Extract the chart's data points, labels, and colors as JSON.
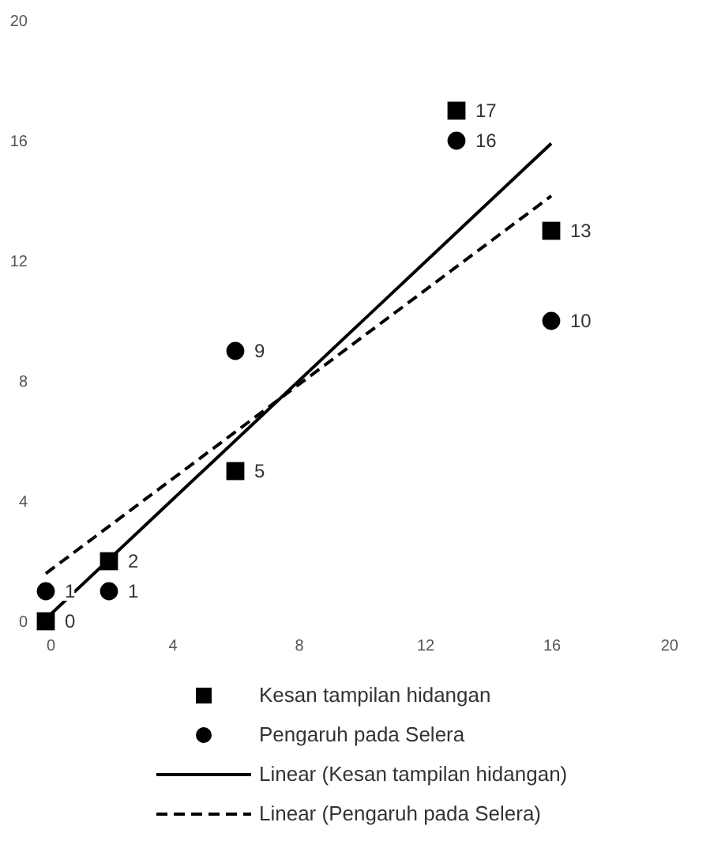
{
  "chart_data": {
    "type": "scatter",
    "xlim": [
      0,
      20
    ],
    "ylim": [
      0,
      20
    ],
    "xticks": [
      0,
      4,
      8,
      12,
      16,
      20
    ],
    "yticks": [
      0,
      4,
      8,
      12,
      16,
      20
    ],
    "grid": false,
    "legend": "bottom",
    "series": [
      {
        "name": "Kesan tampilan hidangan",
        "color": "#000000",
        "marker": "square",
        "x": [
          0,
          2,
          6,
          13,
          16
        ],
        "values": [
          0,
          2,
          5,
          17,
          13
        ],
        "value_labels": [
          "0",
          "2",
          "5",
          "17",
          "13"
        ]
      },
      {
        "name": "Pengaruh pada Selera",
        "color": "#000000",
        "marker": "circle",
        "x": [
          0,
          2,
          6,
          13,
          16
        ],
        "values": [
          1,
          1,
          9,
          16,
          10
        ],
        "value_labels": [
          "1",
          "1",
          "9",
          "16",
          "10"
        ]
      },
      {
        "name": "Linear (Kesan tampilan hidangan)",
        "type": "line",
        "color": "#000000",
        "line_style": "solid",
        "marker": "none",
        "x": [
          0,
          16
        ],
        "values": [
          0.08,
          15.91
        ]
      },
      {
        "name": "Linear (Pengaruh pada Selera)",
        "type": "line",
        "color": "#000000",
        "line_style": "dashed",
        "marker": "none",
        "x": [
          0,
          16
        ],
        "values": [
          1.59,
          14.16
        ]
      }
    ]
  }
}
